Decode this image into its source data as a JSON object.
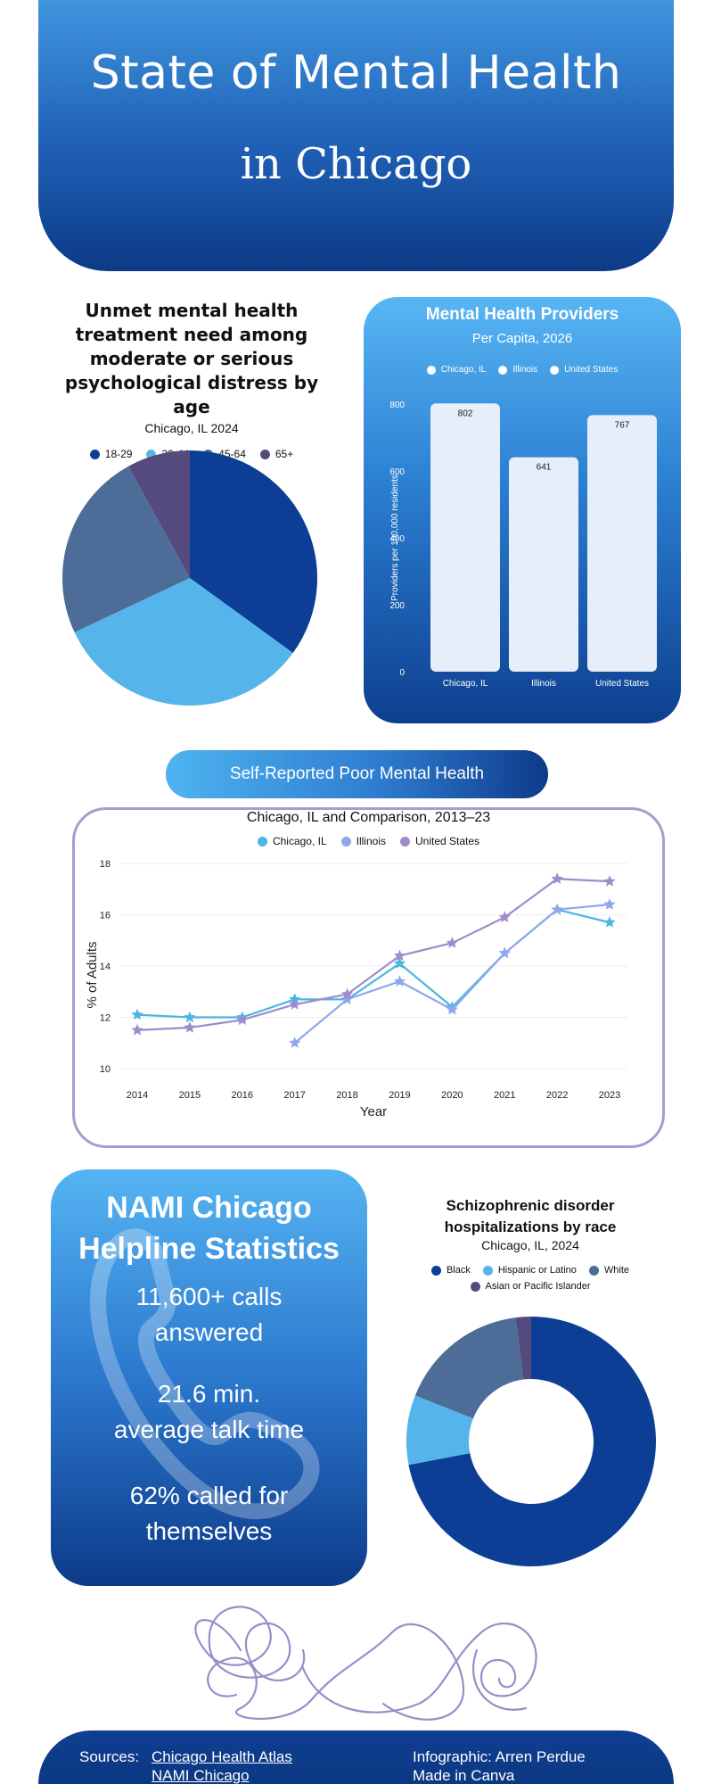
{
  "hero": {
    "title": "State of Mental Health",
    "subtitle": "in Chicago"
  },
  "pie": {
    "title_lines": [
      "Unmet mental health",
      "treatment need among",
      "moderate or serious",
      "psychological distress by age"
    ],
    "subtitle": "Chicago, IL 2024",
    "legend": [
      "18-29",
      "30-44",
      "45-64",
      "65+"
    ]
  },
  "providers": {
    "title": "Mental Health Providers",
    "subtitle": "Per Capita, 2026",
    "legend": [
      "Chicago, IL",
      "Illinois",
      "United States"
    ],
    "ylabel": "Providers per 100,000 residents"
  },
  "line": {
    "pill": "Self-Reported Poor Mental Health",
    "title": "Chicago, IL and Comparison, 2013–23",
    "legend": [
      "Chicago, IL",
      "Illinois",
      "United States"
    ],
    "xlabel": "Year",
    "ylabel": "% of Adults"
  },
  "nami": {
    "title_lines": [
      "NAMI Chicago",
      "Helpline Statistics"
    ],
    "stats": [
      [
        "11,600+ calls",
        "answered"
      ],
      [
        "21.6 min.",
        "average talk time"
      ],
      [
        "62% called for",
        "themselves"
      ]
    ]
  },
  "donut": {
    "title_lines": [
      "Schizophrenic disorder",
      "hospitalizations by race"
    ],
    "subtitle": "Chicago, IL, 2024",
    "legend": [
      "Black",
      "Hispanic or Latino",
      "White",
      "Asian or Pacific Islander"
    ]
  },
  "footer": {
    "sources_label": "Sources:",
    "source1": "Chicago Health Atlas",
    "source2": "NAMI Chicago",
    "credit1": "Infographic: Arren Perdue",
    "credit2": "Made in Canva"
  },
  "colors": {
    "navy": "#0b3e94",
    "sky": "#55b5ea",
    "slate": "#4e6c98",
    "purple": "#544a7d",
    "line_chicago": "#4db5e2",
    "line_illinois": "#8fa8ec",
    "line_us": "#a08bcb"
  },
  "chart_data": [
    {
      "type": "pie",
      "title": "Unmet mental health treatment need among moderate or serious psychological distress by age",
      "subtitle": "Chicago, IL 2024",
      "labels": [
        "18-29",
        "30-44",
        "45-64",
        "65+"
      ],
      "values": [
        35,
        33,
        24,
        8
      ],
      "colors": [
        "#0b3e94",
        "#55b5ea",
        "#4e6c98",
        "#544a7d"
      ],
      "legend_position": "top"
    },
    {
      "type": "bar",
      "title": "Mental Health Providers",
      "subtitle": "Per Capita, 2026",
      "categories": [
        "Chicago, IL",
        "Illinois",
        "United States"
      ],
      "values": [
        802,
        641,
        767
      ],
      "ylabel": "Providers per 100,000 residents",
      "ylim": [
        0,
        800
      ],
      "yticks": [
        0,
        200,
        400,
        600,
        800
      ],
      "legend_position": "top"
    },
    {
      "type": "line",
      "title": "Chicago, IL and Comparison, 2013–23",
      "xlabel": "Year",
      "ylabel": "% of Adults",
      "x": [
        2014,
        2015,
        2016,
        2017,
        2018,
        2019,
        2020,
        2021,
        2022,
        2023
      ],
      "ylim": [
        10,
        18
      ],
      "yticks": [
        10,
        12,
        14,
        16,
        18
      ],
      "grid": true,
      "series": [
        {
          "name": "Chicago, IL",
          "color": "#4db5e2",
          "values": [
            12.1,
            12.0,
            12.0,
            12.7,
            12.7,
            14.1,
            12.4,
            14.5,
            16.2,
            15.7
          ]
        },
        {
          "name": "Illinois",
          "color": "#8fa8ec",
          "values": [
            null,
            null,
            null,
            11.0,
            12.7,
            13.4,
            12.3,
            14.5,
            16.2,
            16.4
          ]
        },
        {
          "name": "United States",
          "color": "#a08bcb",
          "values": [
            11.5,
            11.6,
            11.9,
            12.5,
            12.9,
            14.4,
            14.9,
            15.9,
            17.4,
            17.3
          ]
        }
      ],
      "legend_position": "top"
    },
    {
      "type": "pie",
      "subtype": "donut",
      "title": "Schizophrenic disorder hospitalizations by race",
      "subtitle": "Chicago, IL, 2024",
      "labels": [
        "Black",
        "Hispanic or Latino",
        "White",
        "Asian or Pacific Islander"
      ],
      "values": [
        72,
        9,
        17,
        2
      ],
      "colors": [
        "#0b3e94",
        "#55b5ea",
        "#4e6c98",
        "#544a7d"
      ],
      "legend_position": "top"
    }
  ]
}
